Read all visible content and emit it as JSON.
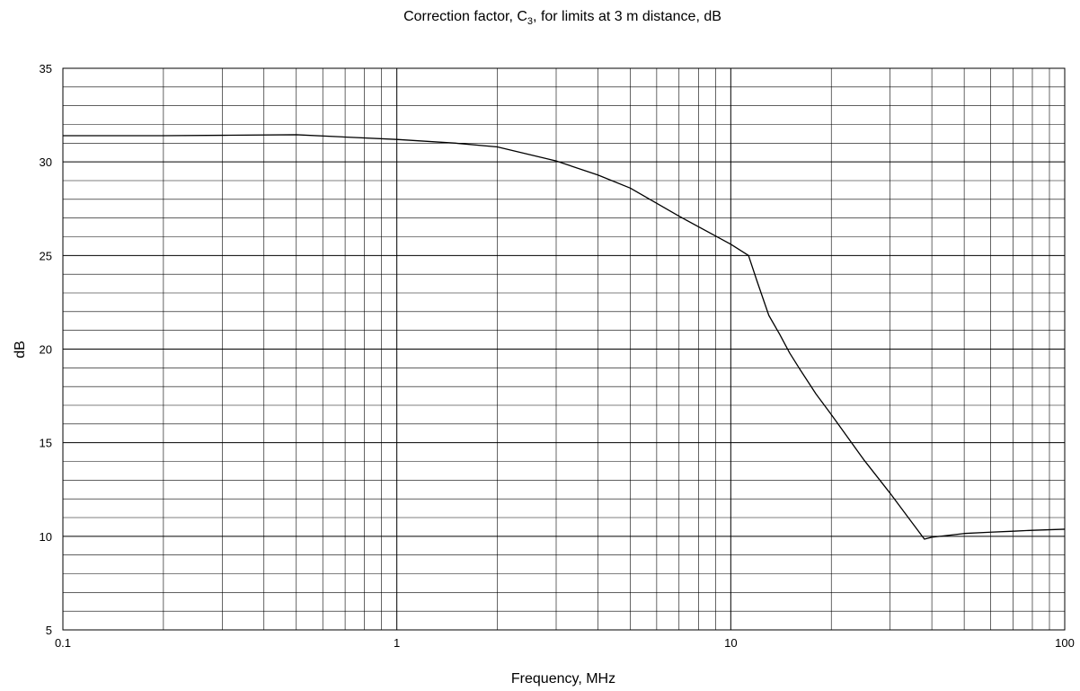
{
  "chart_data": {
    "type": "line",
    "title_prefix": "Correction factor, C",
    "title_subscript": "3",
    "title_suffix": ", for limits at 3 m distance, dB",
    "xlabel": "Frequency, MHz",
    "ylabel": "dB",
    "x_scale": "log",
    "xlim": [
      0.1,
      100
    ],
    "ylim": [
      5,
      35
    ],
    "x_ticks": [
      0.1,
      1,
      10,
      100
    ],
    "x_tick_labels": [
      "0.1",
      "1",
      "10",
      "100"
    ],
    "y_ticks": [
      5,
      10,
      15,
      20,
      25,
      30,
      35
    ],
    "y_tick_labels": [
      "5",
      "10",
      "15",
      "20",
      "25",
      "30",
      "35"
    ],
    "y_minor_step": 1,
    "grid": true,
    "legend": "none",
    "line_color": "#000000",
    "series": [
      {
        "x": [
          0.1,
          0.2,
          0.3,
          0.5,
          1,
          1.5,
          2,
          3,
          4,
          5,
          7,
          10,
          11.3,
          12,
          13,
          14,
          15,
          16,
          18,
          20,
          25,
          30,
          38,
          40,
          50,
          60,
          70,
          80,
          100
        ],
        "y": [
          31.4,
          31.4,
          31.42,
          31.45,
          31.2,
          31.0,
          30.8,
          30.05,
          29.3,
          28.6,
          27.1,
          25.6,
          25.0,
          23.6,
          21.8,
          20.8,
          19.8,
          19.0,
          17.6,
          16.5,
          14.1,
          12.3,
          9.85,
          9.95,
          10.15,
          10.22,
          10.27,
          10.32,
          10.38
        ]
      }
    ]
  }
}
